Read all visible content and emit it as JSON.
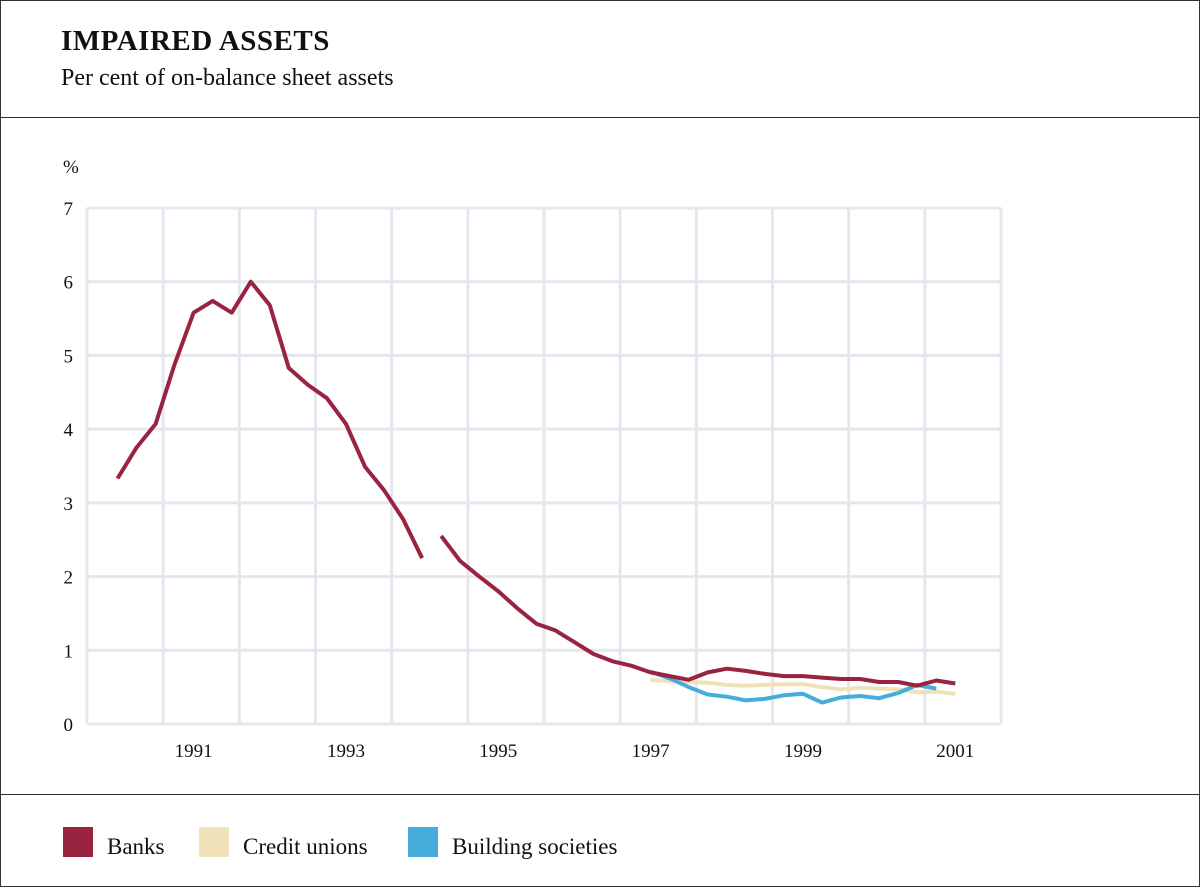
{
  "header": {
    "title": "IMPAIRED ASSETS",
    "subtitle": "Per cent of on-balance sheet assets"
  },
  "chart_data": {
    "type": "line",
    "title": "IMPAIRED ASSETS",
    "subtitle": "Per cent of on-balance sheet assets",
    "ylabel": "%",
    "xlabel": "",
    "ylim": [
      0,
      7
    ],
    "xlim": [
      1989.6,
      2001.6
    ],
    "yticks": [
      "0",
      "1",
      "2",
      "3",
      "4",
      "5",
      "6",
      "7"
    ],
    "xticks": [
      {
        "label": "1991",
        "value": 1991.0
      },
      {
        "label": "1993",
        "value": 1993.0
      },
      {
        "label": "1995",
        "value": 1995.0
      },
      {
        "label": "1997",
        "value": 1997.0
      },
      {
        "label": "1999",
        "value": 1999.0
      },
      {
        "label": "2001",
        "value": 2001.0
      }
    ],
    "grid": true,
    "legend_position": "bottom",
    "series": [
      {
        "name": "Banks",
        "color": "#98243f",
        "segments": [
          [
            [
              1990.0,
              3.33
            ],
            [
              1990.25,
              3.75
            ],
            [
              1990.5,
              4.07
            ],
            [
              1990.75,
              4.88
            ],
            [
              1991.0,
              5.58
            ],
            [
              1991.25,
              5.74
            ],
            [
              1991.5,
              5.58
            ],
            [
              1991.75,
              6.0
            ],
            [
              1992.0,
              5.68
            ],
            [
              1992.25,
              4.83
            ],
            [
              1992.5,
              4.6
            ],
            [
              1992.75,
              4.42
            ],
            [
              1993.0,
              4.07
            ],
            [
              1993.25,
              3.49
            ],
            [
              1993.5,
              3.17
            ],
            [
              1993.75,
              2.78
            ],
            [
              1994.0,
              2.25
            ]
          ],
          [
            [
              1994.25,
              2.55
            ],
            [
              1994.5,
              2.21
            ],
            [
              1994.75,
              2.0
            ],
            [
              1995.0,
              1.8
            ],
            [
              1995.25,
              1.57
            ],
            [
              1995.5,
              1.36
            ],
            [
              1995.75,
              1.27
            ],
            [
              1996.0,
              1.11
            ],
            [
              1996.25,
              0.95
            ],
            [
              1996.5,
              0.85
            ],
            [
              1996.75,
              0.79
            ],
            [
              1997.0,
              0.7
            ],
            [
              1997.25,
              0.65
            ],
            [
              1997.5,
              0.6
            ],
            [
              1997.75,
              0.7
            ],
            [
              1998.0,
              0.75
            ],
            [
              1998.25,
              0.72
            ],
            [
              1998.5,
              0.68
            ],
            [
              1998.75,
              0.65
            ],
            [
              1999.0,
              0.65
            ],
            [
              1999.25,
              0.63
            ],
            [
              1999.5,
              0.61
            ],
            [
              1999.75,
              0.61
            ],
            [
              2000.0,
              0.57
            ],
            [
              2000.25,
              0.57
            ],
            [
              2000.5,
              0.52
            ],
            [
              2000.75,
              0.59
            ],
            [
              2001.0,
              0.55
            ]
          ]
        ]
      },
      {
        "name": "Credit unions",
        "color": "#f0e2b8",
        "segments": [
          [
            [
              1997.0,
              0.6
            ],
            [
              1997.25,
              0.58
            ],
            [
              1997.5,
              0.57
            ],
            [
              1997.75,
              0.56
            ],
            [
              1998.0,
              0.53
            ],
            [
              1998.25,
              0.52
            ],
            [
              1998.5,
              0.53
            ],
            [
              1998.75,
              0.54
            ],
            [
              1999.0,
              0.54
            ],
            [
              1999.25,
              0.5
            ],
            [
              1999.5,
              0.47
            ],
            [
              1999.75,
              0.49
            ],
            [
              2000.0,
              0.48
            ],
            [
              2000.25,
              0.47
            ],
            [
              2000.5,
              0.43
            ],
            [
              2000.75,
              0.44
            ],
            [
              2001.0,
              0.41
            ]
          ]
        ]
      },
      {
        "name": "Building societies",
        "color": "#45acdc",
        "segments": [
          [
            [
              1997.0,
              0.71
            ],
            [
              1997.25,
              0.62
            ],
            [
              1997.5,
              0.5
            ],
            [
              1997.75,
              0.4
            ],
            [
              1998.0,
              0.37
            ],
            [
              1998.25,
              0.32
            ],
            [
              1998.5,
              0.34
            ],
            [
              1998.75,
              0.39
            ],
            [
              1999.0,
              0.41
            ],
            [
              1999.25,
              0.29
            ],
            [
              1999.5,
              0.36
            ],
            [
              1999.75,
              0.38
            ],
            [
              2000.0,
              0.35
            ],
            [
              2000.25,
              0.42
            ],
            [
              2000.5,
              0.53
            ],
            [
              2000.75,
              0.48
            ]
          ]
        ]
      }
    ]
  },
  "legend": {
    "items": [
      {
        "label": "Banks",
        "color": "#98243f"
      },
      {
        "label": "Credit unions",
        "color": "#f0e2b8"
      },
      {
        "label": "Building societies",
        "color": "#45acdc"
      }
    ]
  }
}
